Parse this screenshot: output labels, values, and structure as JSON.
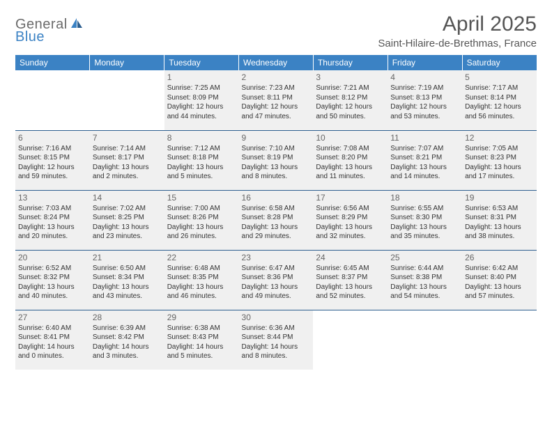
{
  "logo": {
    "part1": "General",
    "part2": "Blue"
  },
  "title": "April 2025",
  "subtitle": "Saint-Hilaire-de-Brethmas, France",
  "colors": {
    "header_bg": "#3b82c4",
    "header_text": "#ffffff",
    "past_bg": "#f0f0f0",
    "border": "#2d5f8f",
    "logo_gray": "#6b6b6b",
    "logo_blue": "#3b82c4"
  },
  "day_headers": [
    "Sunday",
    "Monday",
    "Tuesday",
    "Wednesday",
    "Thursday",
    "Friday",
    "Saturday"
  ],
  "weeks": [
    [
      {
        "empty": true
      },
      {
        "empty": true
      },
      {
        "day": "1",
        "past": true,
        "sunrise": "Sunrise: 7:25 AM",
        "sunset": "Sunset: 8:09 PM",
        "daylight1": "Daylight: 12 hours",
        "daylight2": "and 44 minutes."
      },
      {
        "day": "2",
        "past": true,
        "sunrise": "Sunrise: 7:23 AM",
        "sunset": "Sunset: 8:11 PM",
        "daylight1": "Daylight: 12 hours",
        "daylight2": "and 47 minutes."
      },
      {
        "day": "3",
        "past": true,
        "sunrise": "Sunrise: 7:21 AM",
        "sunset": "Sunset: 8:12 PM",
        "daylight1": "Daylight: 12 hours",
        "daylight2": "and 50 minutes."
      },
      {
        "day": "4",
        "past": true,
        "sunrise": "Sunrise: 7:19 AM",
        "sunset": "Sunset: 8:13 PM",
        "daylight1": "Daylight: 12 hours",
        "daylight2": "and 53 minutes."
      },
      {
        "day": "5",
        "past": true,
        "sunrise": "Sunrise: 7:17 AM",
        "sunset": "Sunset: 8:14 PM",
        "daylight1": "Daylight: 12 hours",
        "daylight2": "and 56 minutes."
      }
    ],
    [
      {
        "day": "6",
        "past": true,
        "sunrise": "Sunrise: 7:16 AM",
        "sunset": "Sunset: 8:15 PM",
        "daylight1": "Daylight: 12 hours",
        "daylight2": "and 59 minutes."
      },
      {
        "day": "7",
        "past": true,
        "sunrise": "Sunrise: 7:14 AM",
        "sunset": "Sunset: 8:17 PM",
        "daylight1": "Daylight: 13 hours",
        "daylight2": "and 2 minutes."
      },
      {
        "day": "8",
        "past": true,
        "sunrise": "Sunrise: 7:12 AM",
        "sunset": "Sunset: 8:18 PM",
        "daylight1": "Daylight: 13 hours",
        "daylight2": "and 5 minutes."
      },
      {
        "day": "9",
        "past": true,
        "sunrise": "Sunrise: 7:10 AM",
        "sunset": "Sunset: 8:19 PM",
        "daylight1": "Daylight: 13 hours",
        "daylight2": "and 8 minutes."
      },
      {
        "day": "10",
        "past": true,
        "sunrise": "Sunrise: 7:08 AM",
        "sunset": "Sunset: 8:20 PM",
        "daylight1": "Daylight: 13 hours",
        "daylight2": "and 11 minutes."
      },
      {
        "day": "11",
        "past": true,
        "sunrise": "Sunrise: 7:07 AM",
        "sunset": "Sunset: 8:21 PM",
        "daylight1": "Daylight: 13 hours",
        "daylight2": "and 14 minutes."
      },
      {
        "day": "12",
        "past": true,
        "sunrise": "Sunrise: 7:05 AM",
        "sunset": "Sunset: 8:23 PM",
        "daylight1": "Daylight: 13 hours",
        "daylight2": "and 17 minutes."
      }
    ],
    [
      {
        "day": "13",
        "past": true,
        "sunrise": "Sunrise: 7:03 AM",
        "sunset": "Sunset: 8:24 PM",
        "daylight1": "Daylight: 13 hours",
        "daylight2": "and 20 minutes."
      },
      {
        "day": "14",
        "past": true,
        "sunrise": "Sunrise: 7:02 AM",
        "sunset": "Sunset: 8:25 PM",
        "daylight1": "Daylight: 13 hours",
        "daylight2": "and 23 minutes."
      },
      {
        "day": "15",
        "past": true,
        "sunrise": "Sunrise: 7:00 AM",
        "sunset": "Sunset: 8:26 PM",
        "daylight1": "Daylight: 13 hours",
        "daylight2": "and 26 minutes."
      },
      {
        "day": "16",
        "past": true,
        "sunrise": "Sunrise: 6:58 AM",
        "sunset": "Sunset: 8:28 PM",
        "daylight1": "Daylight: 13 hours",
        "daylight2": "and 29 minutes."
      },
      {
        "day": "17",
        "past": true,
        "sunrise": "Sunrise: 6:56 AM",
        "sunset": "Sunset: 8:29 PM",
        "daylight1": "Daylight: 13 hours",
        "daylight2": "and 32 minutes."
      },
      {
        "day": "18",
        "past": true,
        "sunrise": "Sunrise: 6:55 AM",
        "sunset": "Sunset: 8:30 PM",
        "daylight1": "Daylight: 13 hours",
        "daylight2": "and 35 minutes."
      },
      {
        "day": "19",
        "past": true,
        "sunrise": "Sunrise: 6:53 AM",
        "sunset": "Sunset: 8:31 PM",
        "daylight1": "Daylight: 13 hours",
        "daylight2": "and 38 minutes."
      }
    ],
    [
      {
        "day": "20",
        "past": true,
        "sunrise": "Sunrise: 6:52 AM",
        "sunset": "Sunset: 8:32 PM",
        "daylight1": "Daylight: 13 hours",
        "daylight2": "and 40 minutes."
      },
      {
        "day": "21",
        "past": true,
        "sunrise": "Sunrise: 6:50 AM",
        "sunset": "Sunset: 8:34 PM",
        "daylight1": "Daylight: 13 hours",
        "daylight2": "and 43 minutes."
      },
      {
        "day": "22",
        "past": true,
        "sunrise": "Sunrise: 6:48 AM",
        "sunset": "Sunset: 8:35 PM",
        "daylight1": "Daylight: 13 hours",
        "daylight2": "and 46 minutes."
      },
      {
        "day": "23",
        "past": true,
        "sunrise": "Sunrise: 6:47 AM",
        "sunset": "Sunset: 8:36 PM",
        "daylight1": "Daylight: 13 hours",
        "daylight2": "and 49 minutes."
      },
      {
        "day": "24",
        "past": true,
        "sunrise": "Sunrise: 6:45 AM",
        "sunset": "Sunset: 8:37 PM",
        "daylight1": "Daylight: 13 hours",
        "daylight2": "and 52 minutes."
      },
      {
        "day": "25",
        "past": true,
        "sunrise": "Sunrise: 6:44 AM",
        "sunset": "Sunset: 8:38 PM",
        "daylight1": "Daylight: 13 hours",
        "daylight2": "and 54 minutes."
      },
      {
        "day": "26",
        "past": true,
        "sunrise": "Sunrise: 6:42 AM",
        "sunset": "Sunset: 8:40 PM",
        "daylight1": "Daylight: 13 hours",
        "daylight2": "and 57 minutes."
      }
    ],
    [
      {
        "day": "27",
        "past": true,
        "sunrise": "Sunrise: 6:40 AM",
        "sunset": "Sunset: 8:41 PM",
        "daylight1": "Daylight: 14 hours",
        "daylight2": "and 0 minutes."
      },
      {
        "day": "28",
        "past": true,
        "sunrise": "Sunrise: 6:39 AM",
        "sunset": "Sunset: 8:42 PM",
        "daylight1": "Daylight: 14 hours",
        "daylight2": "and 3 minutes."
      },
      {
        "day": "29",
        "past": true,
        "sunrise": "Sunrise: 6:38 AM",
        "sunset": "Sunset: 8:43 PM",
        "daylight1": "Daylight: 14 hours",
        "daylight2": "and 5 minutes."
      },
      {
        "day": "30",
        "past": true,
        "sunrise": "Sunrise: 6:36 AM",
        "sunset": "Sunset: 8:44 PM",
        "daylight1": "Daylight: 14 hours",
        "daylight2": "and 8 minutes."
      },
      {
        "empty": true
      },
      {
        "empty": true
      },
      {
        "empty": true
      }
    ]
  ]
}
